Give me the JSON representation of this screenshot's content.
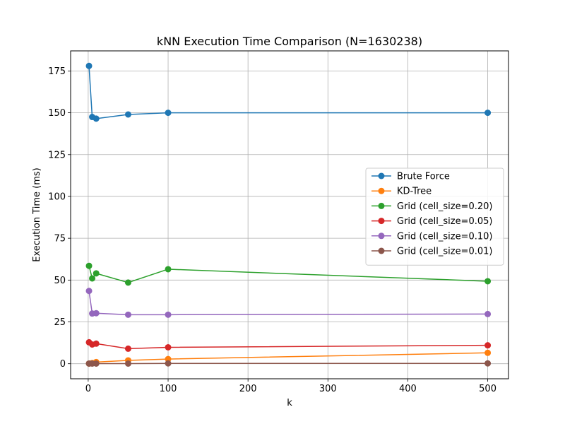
{
  "chart_data": {
    "type": "line",
    "title": "kNN Execution Time Comparison (N=1630238)",
    "xlabel": "k",
    "ylabel": "Execution Time (ms)",
    "xlim": [
      -22,
      526
    ],
    "ylim": [
      -9,
      187
    ],
    "xticks": [
      0,
      100,
      200,
      300,
      400,
      500
    ],
    "yticks": [
      0,
      25,
      50,
      75,
      100,
      125,
      150,
      175
    ],
    "grid": true,
    "legend_position": "center-right",
    "x": [
      1,
      5,
      10,
      50,
      100,
      500
    ],
    "series": [
      {
        "name": "Brute Force",
        "color": "#1f77b4",
        "values": [
          178.0,
          147.5,
          146.5,
          149.0,
          150.0,
          150.0
        ]
      },
      {
        "name": "KD-Tree",
        "color": "#ff7f0e",
        "values": [
          0.1,
          0.4,
          1.0,
          2.0,
          2.8,
          6.5
        ]
      },
      {
        "name": "Grid (cell_size=0.20)",
        "color": "#2ca02c",
        "values": [
          58.5,
          51.0,
          54.0,
          48.5,
          56.5,
          49.3
        ]
      },
      {
        "name": "Grid (cell_size=0.05)",
        "color": "#d62728",
        "values": [
          12.8,
          11.5,
          12.0,
          9.0,
          9.8,
          11.0
        ]
      },
      {
        "name": "Grid (cell_size=0.10)",
        "color": "#9467bd",
        "values": [
          43.5,
          30.0,
          30.2,
          29.3,
          29.3,
          29.7
        ]
      },
      {
        "name": "Grid (cell_size=0.01)",
        "color": "#8c564b",
        "values": [
          0.1,
          0.1,
          0.1,
          0.1,
          0.2,
          0.2
        ]
      }
    ]
  }
}
